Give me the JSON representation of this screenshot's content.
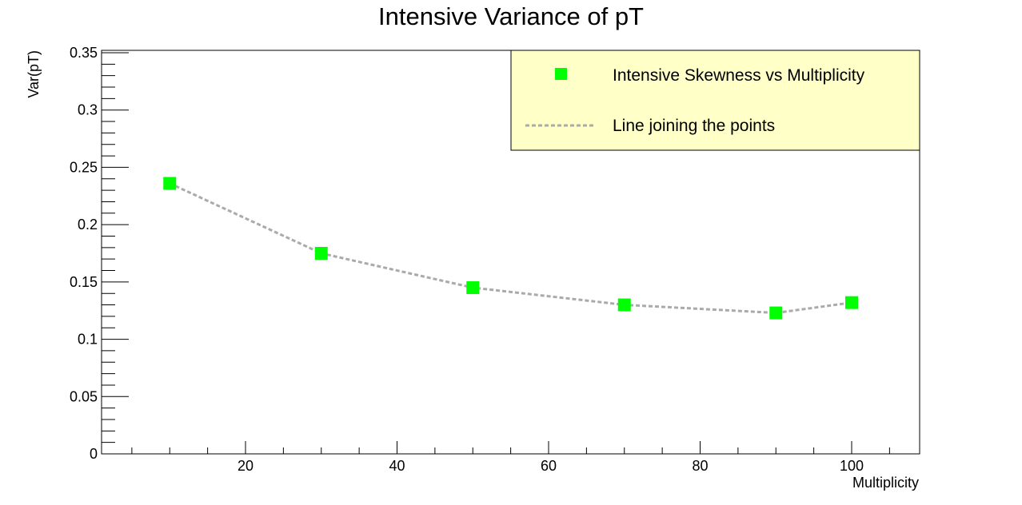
{
  "chart_data": {
    "type": "line",
    "title": "Intensive Variance of pT",
    "xlabel": "Multiplicity",
    "ylabel": "Var(pT)",
    "xlim": [
      0,
      110
    ],
    "ylim": [
      0,
      0.35
    ],
    "x_ticks": [
      20,
      40,
      60,
      80,
      100
    ],
    "x_tick_labels": [
      "20",
      "40",
      "60",
      "80",
      "100"
    ],
    "y_ticks": [
      0,
      0.05,
      0.1,
      0.15,
      0.2,
      0.25,
      0.3,
      0.35
    ],
    "y_tick_labels": [
      "0",
      "0.05",
      "0.1",
      "0.15",
      "0.2",
      "0.25",
      "0.3",
      "0.35"
    ],
    "grid": false,
    "legend_position": "top-right",
    "series": [
      {
        "name": "Intensive Skewness vs Multiplicity",
        "marker": "square",
        "color": "#00ff00",
        "x": [
          10,
          30,
          50,
          70,
          90,
          100
        ],
        "values": [
          0.236,
          0.175,
          0.145,
          0.13,
          0.123,
          0.132
        ]
      }
    ],
    "line": {
      "name": "Line joining the points",
      "style": "dashed",
      "color": "#aaaaaa"
    },
    "legend": {
      "entries": [
        "Intensive Skewness vs Multiplicity",
        "Line joining the points"
      ],
      "background": "#ffffc8"
    }
  }
}
